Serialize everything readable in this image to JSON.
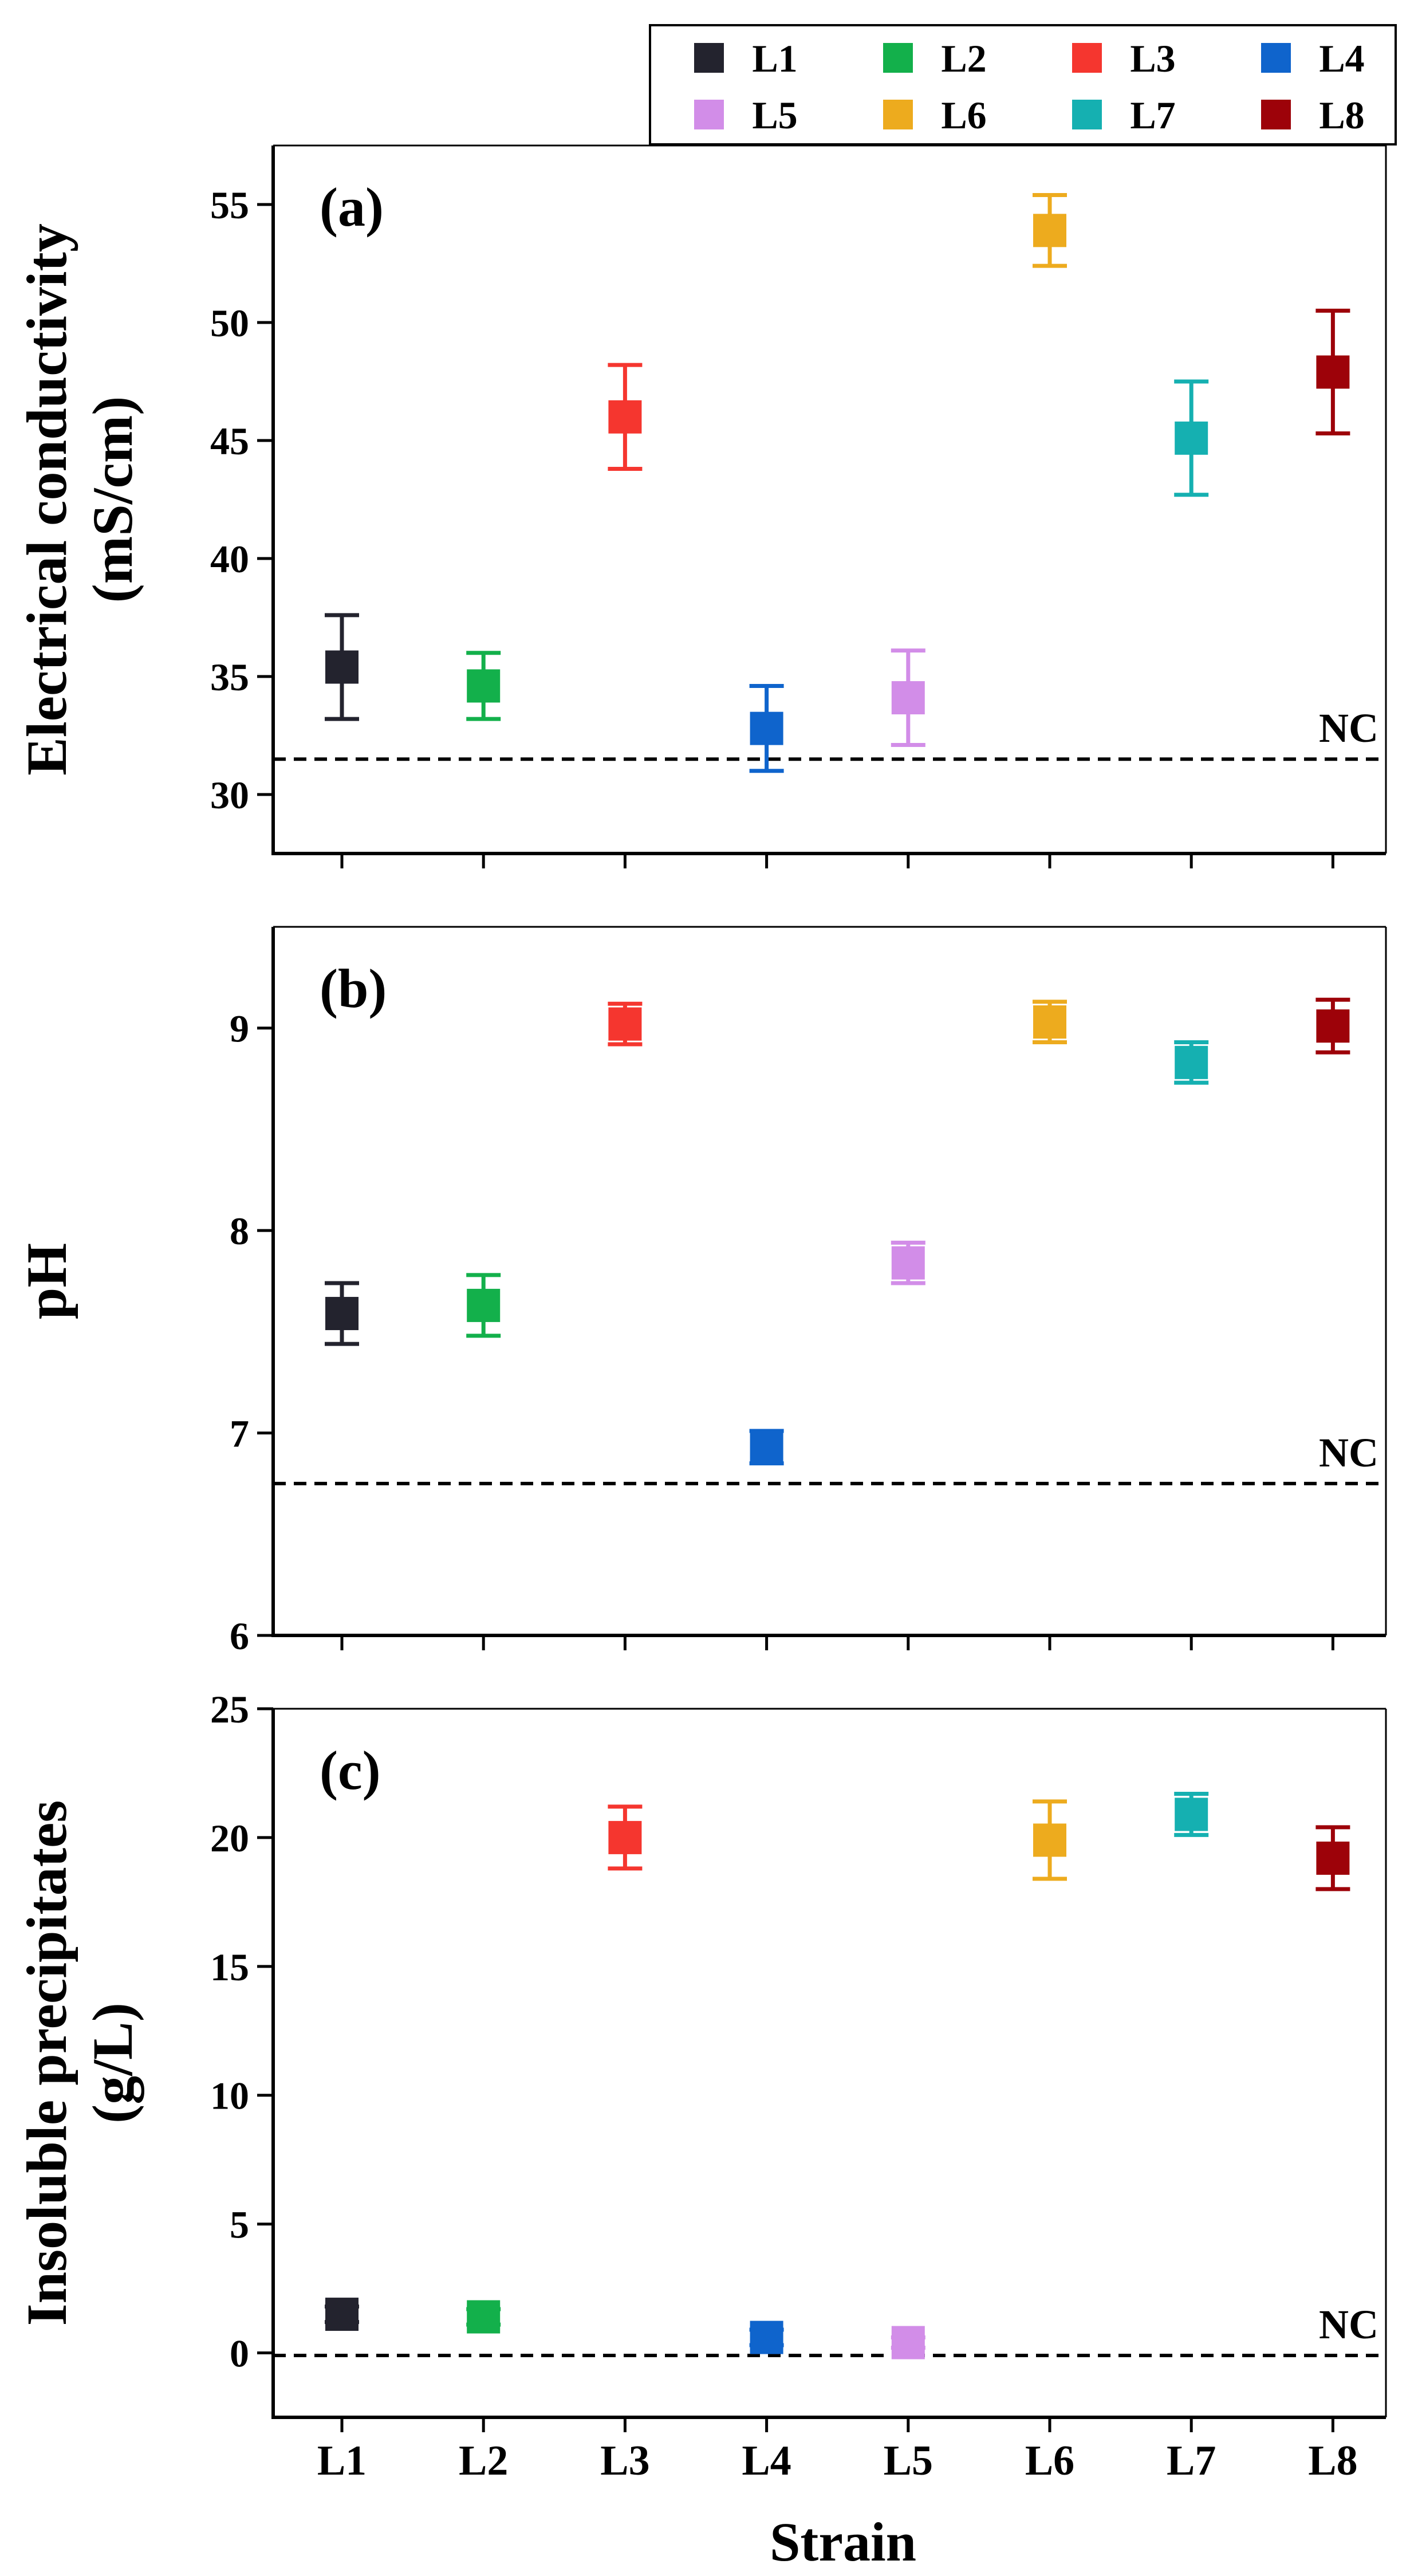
{
  "chart_data": {
    "type": "scatter",
    "xlabel": "Strain",
    "categories": [
      "L1",
      "L2",
      "L3",
      "L4",
      "L5",
      "L6",
      "L7",
      "L8"
    ],
    "colors": [
      "#23232e",
      "#13b04b",
      "#f5362f",
      "#0f64cc",
      "#d28de8",
      "#edab1e",
      "#15b0b1",
      "#9d0209"
    ],
    "legend": {
      "placement": "top-right",
      "entries": [
        "L1",
        "L2",
        "L3",
        "L4",
        "L5",
        "L6",
        "L7",
        "L8"
      ]
    },
    "reference_label": "NC",
    "panels": [
      {
        "id": "a",
        "panel_label": "(a)",
        "ylabel": [
          "Electrical conductivity",
          "(mS/cm)"
        ],
        "ylim": [
          27.5,
          57.5
        ],
        "yticks": [
          30,
          35,
          40,
          45,
          50,
          55
        ],
        "reference": 31.5,
        "values": [
          35.4,
          34.6,
          46.0,
          32.8,
          34.1,
          53.9,
          45.1,
          47.9
        ],
        "errors": [
          2.2,
          1.4,
          2.2,
          1.8,
          2.0,
          1.5,
          2.4,
          2.6
        ]
      },
      {
        "id": "b",
        "panel_label": "(b)",
        "ylabel": [
          "pH"
        ],
        "ylim": [
          6,
          9.5
        ],
        "yticks": [
          6,
          7,
          8,
          9
        ],
        "reference": 6.75,
        "values": [
          7.59,
          7.63,
          9.02,
          6.93,
          7.84,
          9.03,
          8.83,
          9.01
        ],
        "errors": [
          0.15,
          0.15,
          0.1,
          0.08,
          0.1,
          0.1,
          0.1,
          0.13
        ]
      },
      {
        "id": "c",
        "panel_label": "(c)",
        "ylabel": [
          "Insoluble precipitates",
          "(g/L)"
        ],
        "ylim": [
          -2.5,
          25
        ],
        "yticks": [
          0,
          5,
          10,
          15,
          20,
          25
        ],
        "reference": -0.1,
        "values": [
          1.5,
          1.4,
          20.0,
          0.6,
          0.4,
          19.9,
          20.9,
          19.2
        ],
        "errors": [
          0.3,
          0.3,
          1.2,
          0.3,
          0.2,
          1.5,
          0.8,
          1.2
        ]
      }
    ]
  }
}
